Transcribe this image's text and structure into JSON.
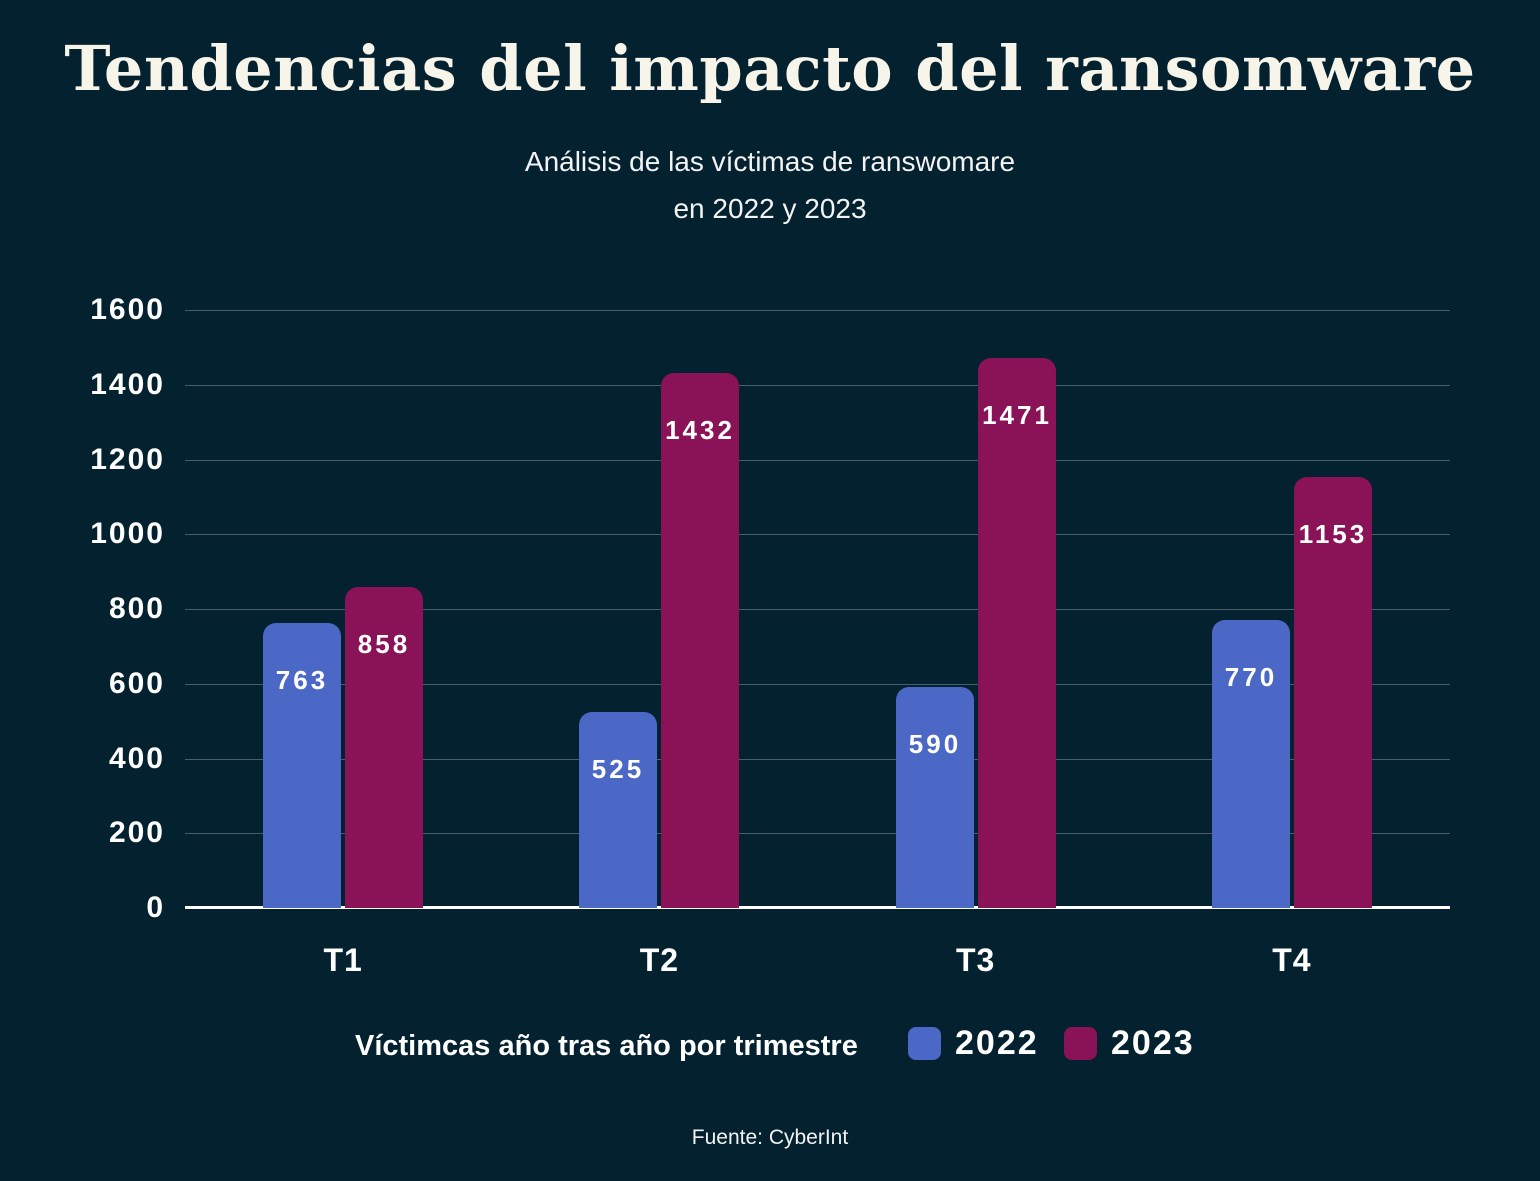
{
  "page": {
    "title": "Tendencias del impacto del ransomware",
    "subtitle_line1": "Análisis de las víctimas de ranswomare",
    "subtitle_line2": "en 2022 y 2023",
    "footer": "Fuente: CyberInt"
  },
  "legend": {
    "caption": "Víctimcas año tras año por trimestre",
    "items": [
      {
        "label": "2022",
        "color": "#4c68c6"
      },
      {
        "label": "2023",
        "color": "#891356"
      }
    ]
  },
  "colors": {
    "background": "#03212f",
    "title_text": "#f7f4ea",
    "body_text": "#ffffff",
    "gridline": "rgba(255,255,255,0.28)",
    "axis_line": "#ffffff",
    "series_2022": "#4c68c6",
    "series_2023": "#891356"
  },
  "chart_data": {
    "type": "bar",
    "categories": [
      "T1",
      "T2",
      "T3",
      "T4"
    ],
    "series": [
      {
        "name": "2022",
        "color": "#4c68c6",
        "values": [
          763,
          525,
          590,
          770
        ]
      },
      {
        "name": "2023",
        "color": "#891356",
        "values": [
          858,
          1432,
          1471,
          1153
        ]
      }
    ],
    "title": "Tendencias del impacto del ransomware",
    "subtitle": "Análisis de las víctimas de ranswomare en 2022 y 2023",
    "xlabel": "",
    "ylabel": "",
    "ylim": [
      0,
      1600
    ],
    "yticks": [
      0,
      200,
      400,
      600,
      800,
      1000,
      1200,
      1400,
      1600
    ],
    "grid": true,
    "legend_position": "bottom",
    "source": "Fuente: CyberInt"
  }
}
